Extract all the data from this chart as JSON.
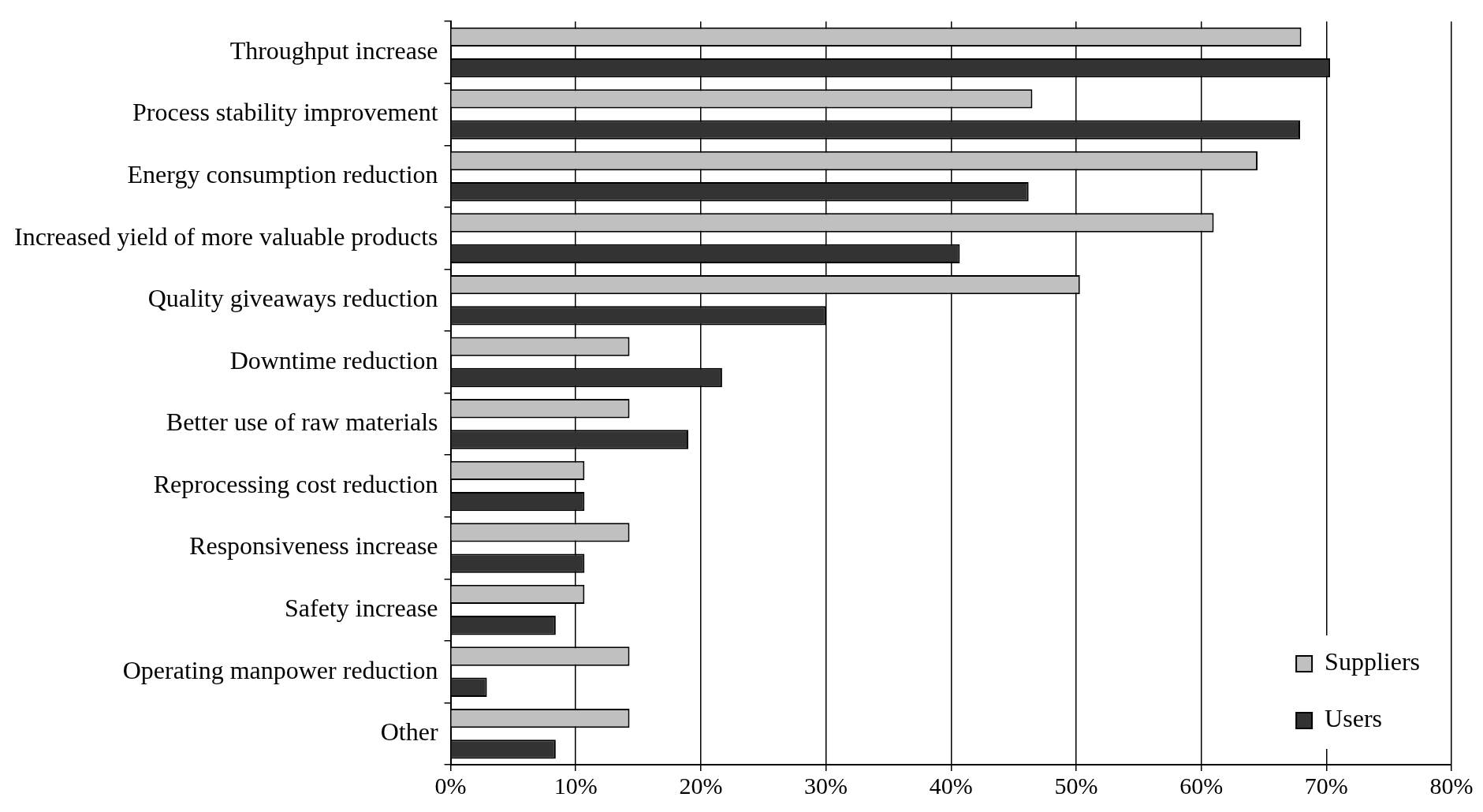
{
  "chart_data": {
    "type": "bar",
    "orientation": "horizontal",
    "categories": [
      "Throughput increase",
      "Process stability improvement",
      "Energy consumption reduction",
      "Increased yield of more valuable products",
      "Quality giveaways reduction",
      "Downtime reduction",
      "Better use of raw materials",
      "Reprocessing cost reduction",
      "Responsiveness increase",
      "Safety increase",
      "Operating manpower reduction",
      "Other"
    ],
    "series": [
      {
        "name": "Suppliers",
        "color": "#c0c0c0",
        "values": [
          68,
          46.5,
          64.5,
          61,
          50.3,
          14.3,
          14.3,
          10.7,
          14.3,
          10.7,
          14.3,
          14.3
        ]
      },
      {
        "name": "Users",
        "color": "#333333",
        "values": [
          70.3,
          67.9,
          46.2,
          40.7,
          30,
          21.7,
          19,
          10.7,
          10.7,
          8.4,
          2.9,
          8.4
        ]
      }
    ],
    "xlim": [
      0,
      80
    ],
    "xticks": [
      {
        "value": 0,
        "label": "0%"
      },
      {
        "value": 10,
        "label": "10%"
      },
      {
        "value": 20,
        "label": "20%"
      },
      {
        "value": 30,
        "label": "30%"
      },
      {
        "value": 40,
        "label": "40%"
      },
      {
        "value": 50,
        "label": "50%"
      },
      {
        "value": 60,
        "label": "60%"
      },
      {
        "value": 70,
        "label": "70%"
      },
      {
        "value": 80,
        "label": "80%"
      }
    ],
    "grid": "x",
    "legend": "bottom right"
  }
}
